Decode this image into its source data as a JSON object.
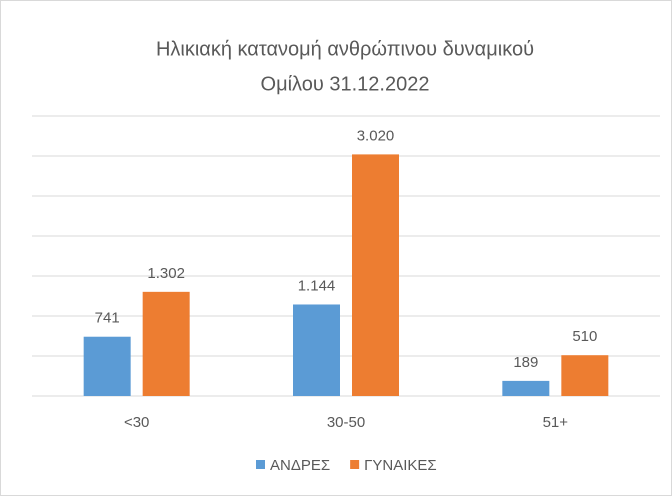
{
  "chart_data": {
    "type": "bar",
    "title": [
      "Ηλικιακή κατανομή ανθρώπινου δυναμικού",
      "Ομίλου 31.12.2022"
    ],
    "categories": [
      "<30",
      "30-50",
      "51+"
    ],
    "series": [
      {
        "name": "ΑΝΔΡΕΣ",
        "color": "#5b9bd5",
        "values": [
          741,
          1144,
          189
        ],
        "value_labels": [
          "741",
          "1.144",
          "189"
        ]
      },
      {
        "name": "ΓΥΝΑΙΚΕΣ",
        "color": "#ed7d31",
        "values": [
          1302,
          3020,
          510
        ],
        "value_labels": [
          "1.302",
          "3.020",
          "510"
        ]
      }
    ],
    "ylim": [
      0,
      3500
    ],
    "yticks": [
      0,
      500,
      1000,
      1500,
      2000,
      2500,
      3000,
      3500
    ],
    "grid": true,
    "legend": "bottom"
  }
}
